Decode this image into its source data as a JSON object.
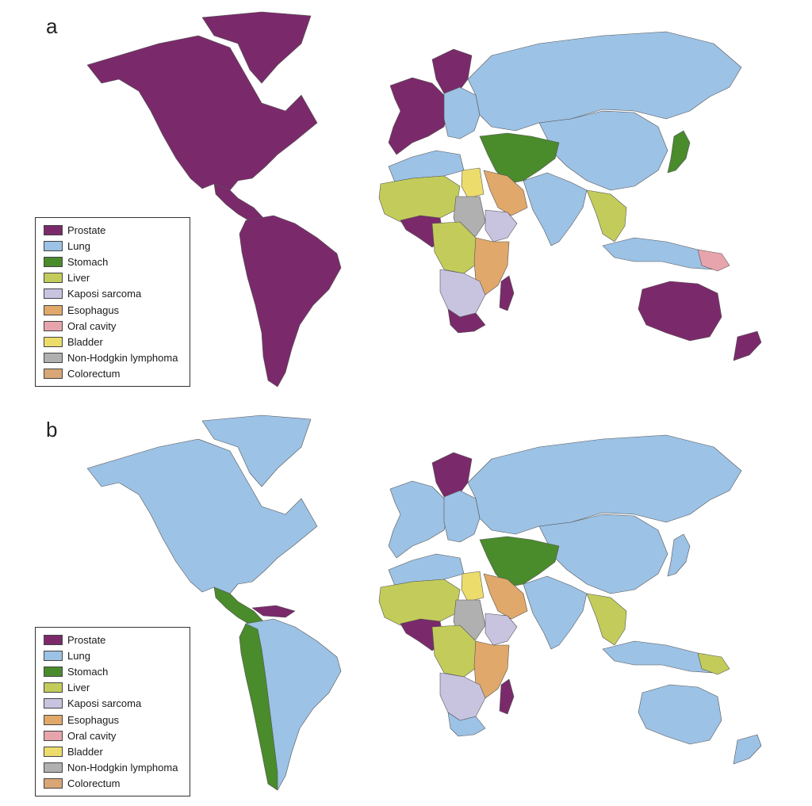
{
  "colors": {
    "Prostate": "#7a2a6a",
    "Lung": "#9cc2e5",
    "Stomach": "#4a8b2c",
    "Liver": "#c3cc5a",
    "Kaposi sarcoma": "#c8c4e0",
    "Esophagus": "#e0a86a",
    "Oral cavity": "#e8a4ac",
    "Bladder": "#ecdc6c",
    "Non-Hodgkin lymphoma": "#b0b0b0",
    "Colorectum": "#d9a676"
  },
  "panels": [
    {
      "label": "a",
      "legend": [
        "Prostate",
        "Lung",
        "Stomach",
        "Liver",
        "Kaposi sarcoma",
        "Esophagus",
        "Oral cavity",
        "Bladder",
        "Non-Hodgkin lymphoma",
        "Colorectum"
      ],
      "regions": {
        "north-america": "Prostate",
        "greenland": "Prostate",
        "central-america": "Prostate",
        "south-america": "Prostate",
        "western-europe": "Prostate",
        "scandinavia": "Prostate",
        "eastern-europe": "Lung",
        "russia": "Lung",
        "china": "Lung",
        "mongolia": "Liver",
        "middle-east": "Stomach",
        "japan": "Stomach",
        "india": "Lung",
        "southeast-asia": "Liver",
        "indonesia": "Lung",
        "north-africa": "Lung",
        "west-africa": "Liver",
        "west-africa-coast": "Prostate",
        "central-africa": "Liver",
        "egypt": "Bladder",
        "arabia": "Esophagus",
        "sudan": "Non-Hodgkin lymphoma",
        "east-africa": "Esophagus",
        "horn": "Kaposi sarcoma",
        "southern-africa": "Kaposi sarcoma",
        "south-africa": "Prostate",
        "madagascar": "Prostate",
        "australia": "Prostate",
        "new-zealand": "Prostate",
        "papua": "Oral cavity"
      }
    },
    {
      "label": "b",
      "legend": [
        "Prostate",
        "Lung",
        "Stomach",
        "Liver",
        "Kaposi sarcoma",
        "Esophagus",
        "Oral cavity",
        "Bladder",
        "Non-Hodgkin lymphoma",
        "Colorectum"
      ],
      "regions": {
        "north-america": "Lung",
        "greenland": "Lung",
        "central-america": "Stomach",
        "caribbean": "Prostate",
        "south-america": "Lung",
        "andes": "Stomach",
        "western-europe": "Lung",
        "scandinavia": "Prostate",
        "eastern-europe": "Lung",
        "russia": "Lung",
        "china": "Lung",
        "mongolia": "Liver",
        "middle-east": "Stomach",
        "japan": "Lung",
        "india": "Lung",
        "southeast-asia": "Liver",
        "indonesia": "Lung",
        "north-africa": "Lung",
        "west-africa": "Liver",
        "west-africa-coast": "Prostate",
        "central-africa": "Liver",
        "egypt": "Bladder",
        "arabia": "Esophagus",
        "sudan": "Non-Hodgkin lymphoma",
        "east-africa": "Esophagus",
        "horn": "Kaposi sarcoma",
        "southern-africa": "Kaposi sarcoma",
        "south-africa": "Lung",
        "madagascar": "Prostate",
        "australia": "Lung",
        "new-zealand": "Lung",
        "papua": "Liver"
      }
    }
  ]
}
